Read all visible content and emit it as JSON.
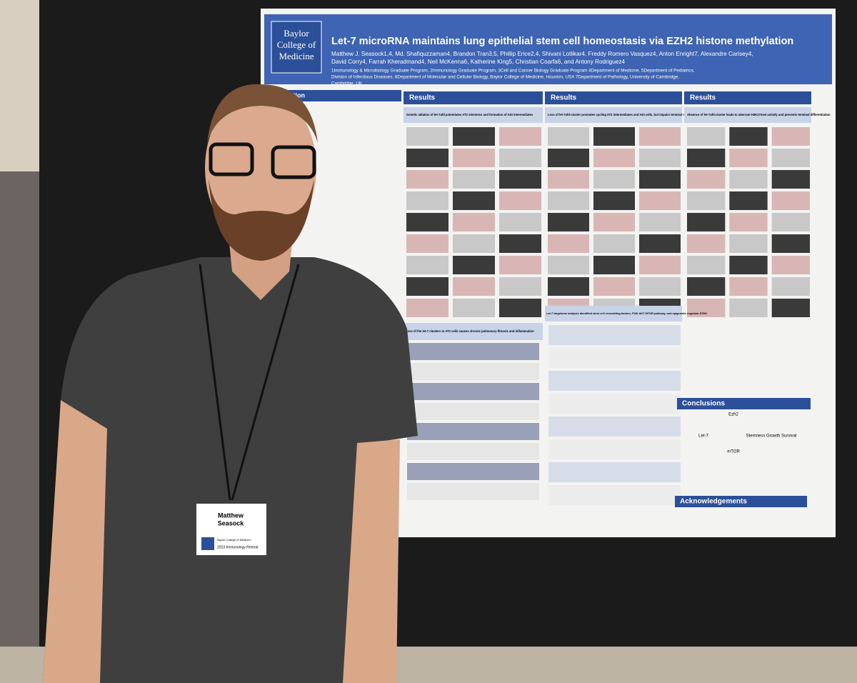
{
  "poster": {
    "institution": [
      "Baylor",
      "College of",
      "Medicine"
    ],
    "title": "Let-7 microRNA maintains lung epithelial stem cell homeostasis via EZH2 histone methylation",
    "authors": [
      "Matthew J. Seasock1,4, Md. Shafiquzzaman4, Brandon Tran3,5, Phillip Erice2,4, Shivani Lotlikar4, Freddy Romero Vasquez4, Anton Enright7, Alexandre Carisey4,",
      "David Corry4, Farrah Kheradmand4, Neil McKenna6, Katherine King5, Christian Coarfa6, and Antony Rodriguez4"
    ],
    "affiliations": [
      "1Immunology & Microbiology Graduate Program, 2Immunology Graduate Program, 3Cell and Cancer Biology Graduate Program 4Department of Medicine, 5Department of Pediatrics,",
      "Division of Infectious Diseases, 6Department of Molecular and Cellular Biology, Baylor College of Medicine, Houston, USA 7Department of Pathology, University of Cambridge,",
      "Cambridge, UK"
    ],
    "intro_heading": "uction",
    "results_headings": [
      "Results",
      "Results",
      "Results"
    ],
    "subheadings": [
      "Genetic ablation of let-7afd potentiates AT2 stemness and formation of ADI intermediates",
      "Loss of let-7afd-cluster promotes cycling AT2 intermediates and ADI cells, but impairs terminal AT1 differentiation",
      "Absence of let-7afd-cluster leads to aberrant H3K27me3 activity and prevents terminal differentiation",
      "Loss of the let-7 clusters in AT2 cells causes chronic pulmonary fibrosis and inflammation",
      "Let-7 targetome analysis identified stem cell remodeling factors, PI3K AKT MTOR pathway, and epigenetic regulator EZH2"
    ],
    "conclusions_heading": "Conclusions",
    "acknowledgements_heading": "Acknowledgements",
    "conclusion_labels": [
      "Ezh2",
      "Let-7",
      "mTOR",
      "Stemness Growth Survival"
    ]
  },
  "badge": {
    "name": [
      "Matthew",
      "Seasock"
    ],
    "institution": "Baylor College of Medicine",
    "event": "2023 Immunology Retreat"
  }
}
